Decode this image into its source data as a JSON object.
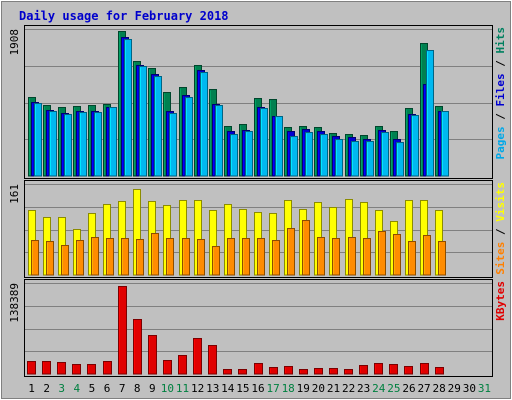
{
  "chart_data": {
    "type": "bar",
    "title": "Daily usage for February 2018",
    "x": [
      "1",
      "2",
      "3",
      "4",
      "5",
      "6",
      "7",
      "8",
      "9",
      "10",
      "11",
      "12",
      "13",
      "14",
      "15",
      "16",
      "17",
      "18",
      "19",
      "20",
      "21",
      "22",
      "23",
      "24",
      "25",
      "26",
      "27",
      "28",
      "29",
      "30",
      "31"
    ],
    "weekend_days": [
      "3",
      "4",
      "10",
      "11",
      "17",
      "18",
      "24",
      "25",
      "31"
    ],
    "panels": [
      {
        "id": "pages_files_hits",
        "ymax_label": "1908",
        "ymax": 1908,
        "labels": [
          {
            "text": "Pages",
            "color": "#00a8e8"
          },
          {
            "text": " / ",
            "color": "#000000"
          },
          {
            "text": "Files",
            "color": "#0000d0"
          },
          {
            "text": " / ",
            "color": "#000000"
          },
          {
            "text": "Hits",
            "color": "#008060"
          }
        ],
        "series": [
          {
            "name": "Hits",
            "color": "#008050",
            "values": [
              1030,
              920,
              900,
              905,
              920,
              940,
              1880,
              1490,
              1400,
              1090,
              1150,
              1440,
              1130,
              650,
              680,
              1010,
              1000,
              635,
              650,
              630,
              560,
              550,
              530,
              650,
              580,
              880,
              1720,
              910,
              null,
              null,
              null
            ]
          },
          {
            "name": "Files",
            "color": "#0000d0",
            "values": [
              960,
              860,
              820,
              840,
              840,
              900,
              1800,
              1440,
              1320,
              840,
              1050,
              1370,
              940,
              580,
              600,
              900,
              780,
              580,
              610,
              580,
              520,
              500,
              480,
              600,
              480,
              800,
              1200,
              850,
              null,
              null,
              null
            ]
          },
          {
            "name": "Pages",
            "color": "#00b8f0",
            "values": [
              950,
              850,
              810,
              830,
              825,
              890,
              1780,
              1430,
              1300,
              820,
              1030,
              1350,
              920,
              550,
              590,
              885,
              775,
              525,
              575,
              540,
              485,
              450,
              450,
              570,
              440,
              790,
              1630,
              840,
              null,
              null,
              null
            ]
          }
        ]
      },
      {
        "id": "visits_sites",
        "ymax_label": "161",
        "ymax": 161,
        "labels": [
          {
            "text": "Sites",
            "color": "#ff8000"
          },
          {
            "text": " / ",
            "color": "#000000"
          },
          {
            "text": "Visits",
            "color": "#ffff00"
          }
        ],
        "series": [
          {
            "name": "Visits",
            "color": "#ffff00",
            "values": [
              115,
              102,
              102,
              82,
              109,
              125,
              131,
              153,
              131,
              123,
              132,
              132,
              115,
              126,
              117,
              111,
              110,
              132,
              116,
              130,
              121,
              135,
              130,
              115,
              95,
              132,
              132,
              115,
              null,
              null,
              null
            ]
          },
          {
            "name": "Sites",
            "color": "#ff8c00",
            "values": [
              62,
              60,
              53,
              62,
              67,
              66,
              66,
              63,
              74,
              65,
              65,
              63,
              52,
              65,
              66,
              65,
              62,
              83,
              97,
              68,
              65,
              67,
              65,
              78,
              72,
              60,
              70,
              60,
              null,
              null,
              null
            ]
          }
        ]
      },
      {
        "id": "kbytes",
        "ymax_label": "138389",
        "ymax": 138389,
        "labels": [
          {
            "text": "KBytes",
            "color": "#e00000"
          }
        ],
        "series": [
          {
            "name": "KBytes",
            "color": "#e00000",
            "values": [
              19500,
              20500,
              17500,
              15000,
              15000,
              20000,
              134000,
              83000,
              59000,
              22000,
              29000,
              55000,
              44000,
              7000,
              7200,
              17000,
              11000,
              12000,
              8000,
              8500,
              8500,
              7500,
              14000,
              17000,
              15000,
              12000,
              16000,
              11000,
              null,
              null,
              null
            ]
          }
        ]
      }
    ],
    "grid": true,
    "colors": {
      "background": "#c0c0c0",
      "panel": "#c0c0c0",
      "grid": "#808080",
      "title": "#0000cc",
      "weekday_tick": "#000000",
      "weekend_tick": "#008040"
    }
  }
}
